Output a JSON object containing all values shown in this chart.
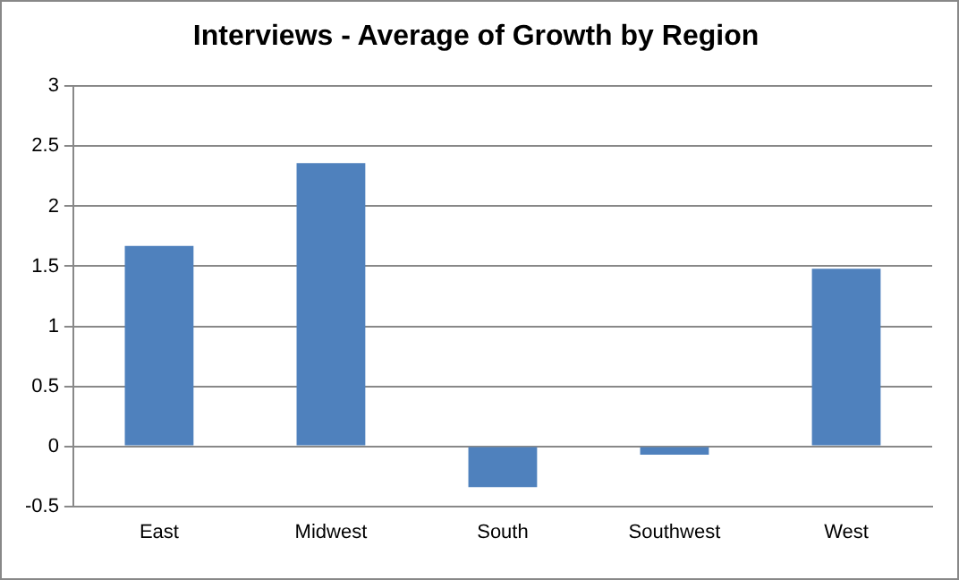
{
  "chart_data": {
    "type": "bar",
    "title": "Interviews - Average of Growth by Region",
    "categories": [
      "East",
      "Midwest",
      "South",
      "Southwest",
      "West"
    ],
    "values": [
      1.67,
      2.36,
      -0.34,
      -0.07,
      1.48
    ],
    "color": "#4f81bd",
    "ylim": [
      -0.5,
      3
    ],
    "yticks": [
      -0.5,
      0,
      0.5,
      1,
      1.5,
      2,
      2.5,
      3
    ],
    "grid": "y"
  }
}
